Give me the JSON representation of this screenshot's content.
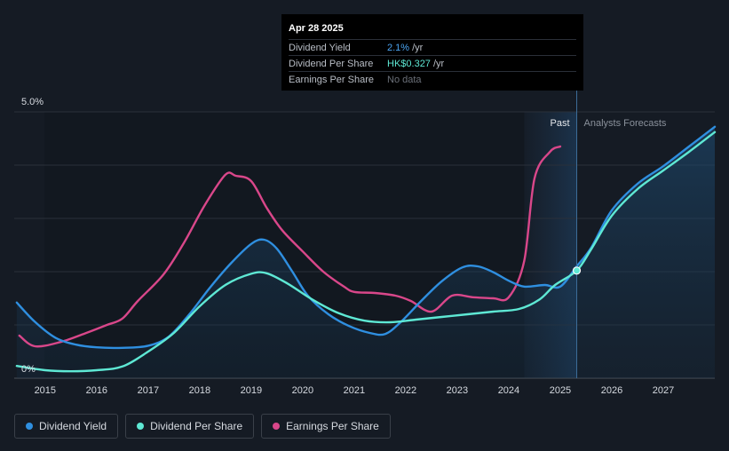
{
  "tooltip": {
    "date": "Apr 28 2025",
    "rows": [
      {
        "label": "Dividend Yield",
        "value": "2.1%",
        "unit": "/yr"
      },
      {
        "label": "Dividend Per Share",
        "value": "HK$0.327",
        "unit": "/yr"
      },
      {
        "label": "Earnings Per Share",
        "value": "No data",
        "unit": ""
      }
    ]
  },
  "regions": {
    "past": "Past",
    "forecast": "Analysts Forecasts"
  },
  "legend": [
    {
      "label": "Dividend Yield",
      "color": "#2f8fe0"
    },
    {
      "label": "Dividend Per Share",
      "color": "#5ee8d4"
    },
    {
      "label": "Earnings Per Share",
      "color": "#d9478a"
    }
  ],
  "colors": {
    "background": "#151b24",
    "dividend_yield": "#2f8fe0",
    "dividend_per_share": "#5ee8d4",
    "earnings_per_share": "#d9478a"
  },
  "chart_data": {
    "type": "line",
    "xlim": [
      2014.4,
      2028.0
    ],
    "ylim": [
      0,
      5.0
    ],
    "ytick_labels": [
      "5.0%",
      "0%"
    ],
    "x_ticks": [
      2015,
      2016,
      2017,
      2018,
      2019,
      2020,
      2021,
      2022,
      2023,
      2024,
      2025,
      2026,
      2027
    ],
    "past_shade_start": 2024.3,
    "today": 2025.32,
    "series": [
      {
        "name": "Dividend Yield",
        "points": [
          [
            2014.45,
            1.42
          ],
          [
            2014.8,
            1.06
          ],
          [
            2015.2,
            0.76
          ],
          [
            2015.6,
            0.63
          ],
          [
            2016.0,
            0.58
          ],
          [
            2016.5,
            0.57
          ],
          [
            2017.0,
            0.61
          ],
          [
            2017.4,
            0.78
          ],
          [
            2017.8,
            1.2
          ],
          [
            2018.2,
            1.7
          ],
          [
            2018.6,
            2.15
          ],
          [
            2019.0,
            2.52
          ],
          [
            2019.25,
            2.6
          ],
          [
            2019.5,
            2.43
          ],
          [
            2019.8,
            2.0
          ],
          [
            2020.1,
            1.55
          ],
          [
            2020.5,
            1.2
          ],
          [
            2020.9,
            0.98
          ],
          [
            2021.3,
            0.85
          ],
          [
            2021.6,
            0.83
          ],
          [
            2021.9,
            1.05
          ],
          [
            2022.3,
            1.45
          ],
          [
            2022.7,
            1.82
          ],
          [
            2023.1,
            2.08
          ],
          [
            2023.4,
            2.1
          ],
          [
            2023.7,
            1.99
          ],
          [
            2024.0,
            1.83
          ],
          [
            2024.3,
            1.72
          ],
          [
            2024.7,
            1.75
          ],
          [
            2025.0,
            1.72
          ],
          [
            2025.32,
            2.1
          ],
          [
            2025.6,
            2.45
          ],
          [
            2026.0,
            3.15
          ],
          [
            2026.5,
            3.65
          ],
          [
            2027.0,
            3.98
          ],
          [
            2027.5,
            4.35
          ],
          [
            2028.0,
            4.72
          ]
        ]
      },
      {
        "name": "Dividend Per Share",
        "points": [
          [
            2014.45,
            0.23
          ],
          [
            2015.0,
            0.15
          ],
          [
            2015.5,
            0.13
          ],
          [
            2016.0,
            0.15
          ],
          [
            2016.5,
            0.22
          ],
          [
            2017.0,
            0.5
          ],
          [
            2017.5,
            0.85
          ],
          [
            2018.0,
            1.35
          ],
          [
            2018.5,
            1.75
          ],
          [
            2019.0,
            1.96
          ],
          [
            2019.3,
            1.97
          ],
          [
            2019.7,
            1.78
          ],
          [
            2020.2,
            1.47
          ],
          [
            2020.7,
            1.22
          ],
          [
            2021.2,
            1.08
          ],
          [
            2021.7,
            1.05
          ],
          [
            2022.2,
            1.1
          ],
          [
            2022.7,
            1.15
          ],
          [
            2023.2,
            1.2
          ],
          [
            2023.7,
            1.25
          ],
          [
            2024.2,
            1.3
          ],
          [
            2024.6,
            1.48
          ],
          [
            2024.9,
            1.75
          ],
          [
            2025.32,
            2.02
          ],
          [
            2025.6,
            2.42
          ],
          [
            2026.0,
            3.05
          ],
          [
            2026.5,
            3.55
          ],
          [
            2027.0,
            3.9
          ],
          [
            2027.5,
            4.25
          ],
          [
            2028.0,
            4.62
          ]
        ]
      },
      {
        "name": "Earnings Per Share",
        "points": [
          [
            2014.5,
            0.8
          ],
          [
            2014.8,
            0.6
          ],
          [
            2015.3,
            0.68
          ],
          [
            2015.8,
            0.85
          ],
          [
            2016.2,
            1.0
          ],
          [
            2016.5,
            1.12
          ],
          [
            2016.8,
            1.45
          ],
          [
            2017.3,
            1.95
          ],
          [
            2017.7,
            2.55
          ],
          [
            2018.1,
            3.25
          ],
          [
            2018.5,
            3.82
          ],
          [
            2018.7,
            3.8
          ],
          [
            2019.0,
            3.7
          ],
          [
            2019.3,
            3.2
          ],
          [
            2019.6,
            2.78
          ],
          [
            2020.0,
            2.38
          ],
          [
            2020.4,
            2.0
          ],
          [
            2020.8,
            1.72
          ],
          [
            2021.0,
            1.62
          ],
          [
            2021.4,
            1.6
          ],
          [
            2021.8,
            1.55
          ],
          [
            2022.1,
            1.45
          ],
          [
            2022.5,
            1.25
          ],
          [
            2022.9,
            1.55
          ],
          [
            2023.3,
            1.52
          ],
          [
            2023.7,
            1.5
          ],
          [
            2024.0,
            1.52
          ],
          [
            2024.3,
            2.2
          ],
          [
            2024.5,
            3.75
          ],
          [
            2024.8,
            4.25
          ],
          [
            2025.0,
            4.35
          ]
        ]
      }
    ]
  }
}
